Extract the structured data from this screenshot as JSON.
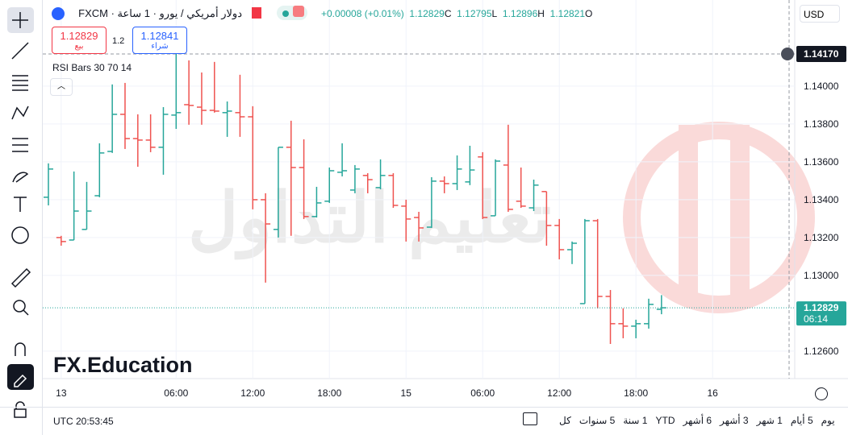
{
  "header": {
    "symbol": "دولار أمريكي / يورو · 1 ساعة · FXCM",
    "change": "+0.00008 (+0.01%)",
    "o_label": "O",
    "h_label": "H",
    "l_label": "L",
    "c_label": "C",
    "sell_price": "1.12829",
    "sell_label": "بيع",
    "spread": "1.2",
    "buy_price": "1.12841",
    "buy_label": "شراء",
    "indicator": "RSI Bars 30 70 14",
    "currency": "USD"
  },
  "watermark": {
    "text": "تعليم التداول",
    "brand": "FX.Education"
  },
  "chart_data": {
    "type": "ohlc",
    "up_color": "#26a69a",
    "down_color": "#ef5350",
    "ohlc": [
      [
        1.13413,
        1.13592,
        1.1337,
        1.13562
      ],
      [
        1.132,
        1.13209,
        1.13157,
        1.13179
      ],
      [
        1.13187,
        1.13549,
        1.13187,
        1.1334
      ],
      [
        1.13243,
        1.13494,
        1.13243,
        1.1334
      ],
      [
        1.13421,
        1.13698,
        1.13413,
        1.13647
      ],
      [
        1.13655,
        1.14009,
        1.13647,
        1.13851
      ],
      [
        1.13851,
        1.14017,
        1.13668,
        1.13723
      ],
      [
        1.13723,
        1.13851,
        1.13574,
        1.13715
      ],
      [
        1.13715,
        1.13851,
        1.13651,
        1.13677
      ],
      [
        1.13677,
        1.13889,
        1.13532,
        1.13851
      ],
      [
        1.13847,
        1.1417,
        1.13774,
        1.1386
      ],
      [
        1.13902,
        1.14136,
        1.13796,
        1.13898
      ],
      [
        1.13889,
        1.14072,
        1.13796,
        1.13872
      ],
      [
        1.13872,
        1.14128,
        1.1386,
        1.13868
      ],
      [
        1.1386,
        1.13919,
        1.13732,
        1.13868
      ],
      [
        1.1386,
        1.1406,
        1.13732,
        1.13838
      ],
      [
        1.13838,
        1.13894,
        1.13349,
        1.134
      ],
      [
        1.134,
        1.13434,
        1.12962,
        1.13272
      ],
      [
        1.13243,
        1.13677,
        1.132,
        1.13677
      ],
      [
        1.13677,
        1.13817,
        1.13209,
        1.1357
      ],
      [
        1.1357,
        1.13719,
        1.13298,
        1.13311
      ],
      [
        1.13311,
        1.13468,
        1.13306,
        1.13383
      ],
      [
        1.13392,
        1.1357,
        1.13383,
        1.13553
      ],
      [
        1.13545,
        1.13698,
        1.13523,
        1.13553
      ],
      [
        1.13451,
        1.13583,
        1.13434,
        1.13562
      ],
      [
        1.13528,
        1.1354,
        1.13434,
        1.13506
      ],
      [
        1.13464,
        1.13613,
        1.13455,
        1.13528
      ],
      [
        1.13528,
        1.1354,
        1.13357,
        1.1337
      ],
      [
        1.13366,
        1.134,
        1.13179,
        1.13298
      ],
      [
        1.13306,
        1.13336,
        1.13179,
        1.13251
      ],
      [
        1.13255,
        1.13519,
        1.13251,
        1.13498
      ],
      [
        1.13498,
        1.13523,
        1.13434,
        1.13485
      ],
      [
        1.13485,
        1.13634,
        1.13451,
        1.13562
      ],
      [
        1.13494,
        1.13685,
        1.13477,
        1.13557
      ],
      [
        1.13626,
        1.13651,
        1.13298,
        1.13306
      ],
      [
        1.13315,
        1.13613,
        1.13315,
        1.13604
      ],
      [
        1.13583,
        1.13796,
        1.13336,
        1.13349
      ],
      [
        1.13392,
        1.1357,
        1.13357,
        1.13366
      ],
      [
        1.13357,
        1.13506,
        1.1334,
        1.13477
      ],
      [
        1.13443,
        1.13443,
        1.13157,
        1.13264
      ],
      [
        1.13264,
        1.13298,
        1.13085,
        1.13136
      ],
      [
        1.13136,
        1.13179,
        1.1306,
        1.1317
      ],
      [
        1.12851,
        1.13298,
        1.12851,
        1.13289
      ],
      [
        1.13289,
        1.13298,
        1.12826,
        1.12889
      ],
      [
        1.12889,
        1.12923,
        1.12638,
        1.12745
      ],
      [
        1.12745,
        1.12826,
        1.12668,
        1.12732
      ],
      [
        1.12732,
        1.12766,
        1.12668,
        1.12745
      ],
      [
        1.12745,
        1.12877,
        1.12719,
        1.12847
      ],
      [
        1.12821,
        1.12896,
        1.12795,
        1.12829
      ]
    ],
    "ylim": [
      1.12455,
      1.14455
    ],
    "yticks": [
      {
        "value": 1.14,
        "label": "1.14000"
      },
      {
        "value": 1.138,
        "label": "1.13800"
      },
      {
        "value": 1.136,
        "label": "1.13600"
      },
      {
        "value": 1.134,
        "label": "1.13400"
      },
      {
        "value": 1.132,
        "label": "1.13200"
      },
      {
        "value": 1.13,
        "label": "1.13000"
      },
      {
        "value": 1.126,
        "label": "1.12600"
      }
    ],
    "crosshair": {
      "value": 1.1417,
      "label": "1.14170"
    },
    "countdown": "06:14",
    "time_labels": [
      "13",
      "06:00",
      "12:00",
      "18:00",
      "15",
      "06:00",
      "12:00",
      "18:00",
      "16"
    ],
    "grid": true
  },
  "footer": {
    "clock": "UTC 20:53:45",
    "ranges": [
      "كل",
      "5 سنوات",
      "1 سنة",
      "YTD",
      "6 أشهر",
      "3 أشهر",
      "1 شهر",
      "5 أيام",
      "يوم"
    ]
  }
}
